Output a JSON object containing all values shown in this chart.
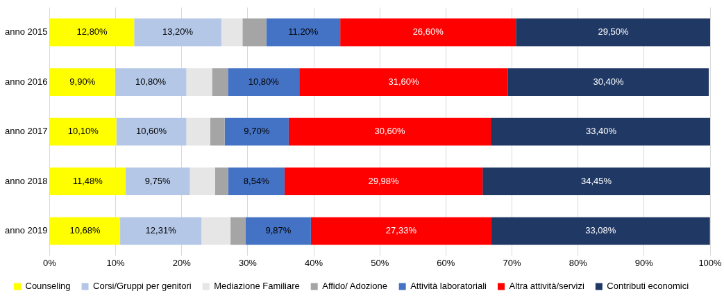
{
  "chart_data": {
    "type": "bar",
    "orientation": "horizontal",
    "stacked": true,
    "categories": [
      "anno 2015",
      "anno 2016",
      "anno 2017",
      "anno 2018",
      "anno 2019"
    ],
    "series": [
      {
        "name": "Counseling",
        "color": "#ffff00",
        "values": [
          12.8,
          9.9,
          10.1,
          11.48,
          10.68
        ],
        "value_labels": [
          "12,80%",
          "9,90%",
          "10,10%",
          "11,48%",
          "10,68%"
        ]
      },
      {
        "name": "Corsi/Gruppi per genitori",
        "color": "#b4c7e7",
        "values": [
          13.2,
          10.8,
          10.6,
          9.75,
          12.31
        ],
        "value_labels": [
          "13,20%",
          "10,80%",
          "10,60%",
          "9,75%",
          "12,31%"
        ]
      },
      {
        "name": "Mediazione Familiare",
        "color": "#e7e6e6",
        "values": [
          3.2,
          3.9,
          3.6,
          3.8,
          4.4
        ],
        "value_labels": [
          null,
          null,
          null,
          null,
          null
        ]
      },
      {
        "name": "Affido/ Adozione",
        "color": "#a5a5a5",
        "values": [
          3.6,
          2.4,
          2.2,
          2.0,
          2.3
        ],
        "value_labels": [
          null,
          null,
          null,
          null,
          null
        ]
      },
      {
        "name": "Attività laboratoriali",
        "color": "#4472c4",
        "values": [
          11.2,
          10.8,
          9.7,
          8.54,
          9.87
        ],
        "value_labels": [
          "11,20%",
          "10,80%",
          "9,70%",
          "8,54%",
          "9,87%"
        ]
      },
      {
        "name": "Altra attività/servizi",
        "color": "#ff0000",
        "values": [
          26.6,
          31.6,
          30.6,
          29.98,
          27.33
        ],
        "value_labels": [
          "26,60%",
          "31,60%",
          "30,60%",
          "29,98%",
          "27,33%"
        ]
      },
      {
        "name": "Contributi economici",
        "color": "#203864",
        "values": [
          29.5,
          30.4,
          33.4,
          34.45,
          33.08
        ],
        "value_labels": [
          "29,50%",
          "30,40%",
          "33,40%",
          "34,45%",
          "33,08%"
        ]
      }
    ],
    "xlim": [
      0,
      100
    ],
    "xticks": [
      {
        "value": 0,
        "label": "0%"
      },
      {
        "value": 10,
        "label": "10%"
      },
      {
        "value": 20,
        "label": "20%"
      },
      {
        "value": 30,
        "label": "30%"
      },
      {
        "value": 40,
        "label": "40%"
      },
      {
        "value": 50,
        "label": "50%"
      },
      {
        "value": 60,
        "label": "60%"
      },
      {
        "value": 70,
        "label": "70%"
      },
      {
        "value": 80,
        "label": "80%"
      },
      {
        "value": 90,
        "label": "90%"
      },
      {
        "value": 100,
        "label": "100%"
      }
    ],
    "grid": "x",
    "legend": "bottom"
  }
}
